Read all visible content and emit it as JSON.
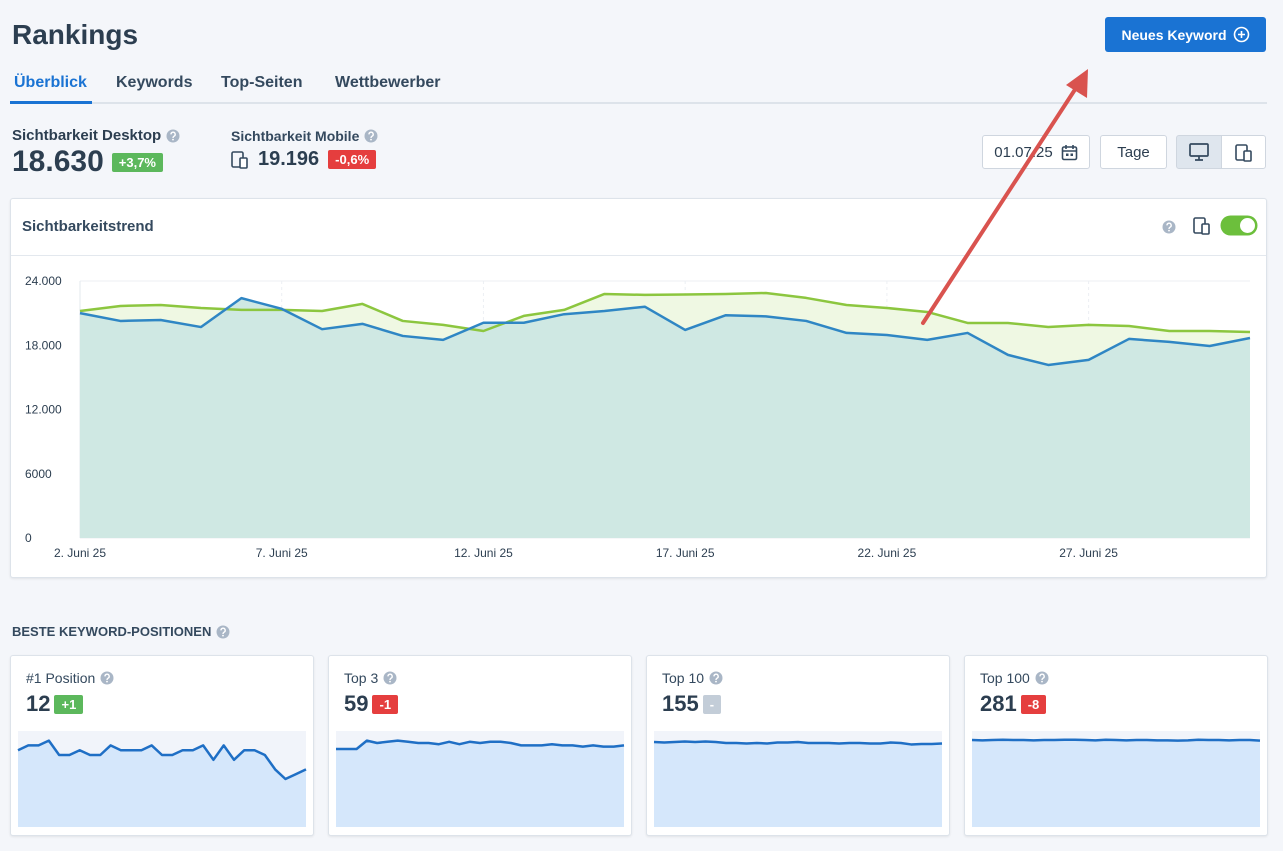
{
  "header": {
    "title": "Rankings",
    "button": "Neues Keyword"
  },
  "tabs": [
    "Überblick",
    "Keywords",
    "Top-Seiten",
    "Wettbewerber"
  ],
  "metrics": [
    {
      "label": "Sichtbarkeit Desktop",
      "value": "18.630",
      "change": "+3,7%"
    },
    {
      "label": "Sichtbarkeit Mobile",
      "value": "19.196",
      "change": "-0,6%"
    }
  ],
  "controls": {
    "date": "01.07.25",
    "unit": "Tage"
  },
  "chart_data": {
    "type": "line",
    "title": "Sichtbarkeitstrend",
    "categories": [
      "2. Juni 25",
      null,
      null,
      null,
      null,
      "7. Juni 25",
      null,
      null,
      null,
      null,
      "12. Juni 25",
      null,
      null,
      null,
      null,
      "17. Juni 25",
      null,
      null,
      null,
      null,
      "22. Juni 25",
      null,
      null,
      null,
      null,
      "27. Juni 25",
      null,
      null,
      null,
      null
    ],
    "series": [
      {
        "color": "#8cc63f",
        "fill": "#eff8e3",
        "values": [
          21200,
          21670,
          21760,
          21480,
          21300,
          21300,
          21200,
          21860,
          20270,
          19900,
          19330,
          20740,
          21300,
          22790,
          22700,
          22740,
          22790,
          22880,
          22420,
          21760,
          21480,
          21110,
          20080,
          20080,
          19700,
          19900,
          19800,
          19330,
          19330,
          19240
        ]
      },
      {
        "color": "#2f86c4",
        "fill": "#cfe8e3",
        "values": [
          21000,
          20270,
          20360,
          19700,
          22400,
          21400,
          19500,
          20000,
          18870,
          18500,
          20100,
          20100,
          20900,
          21200,
          21600,
          19430,
          20800,
          20700,
          20270,
          19150,
          18960,
          18500,
          19150,
          17100,
          16160,
          16630,
          18590,
          18310,
          17930,
          18680
        ]
      }
    ],
    "ylim": [
      0,
      24000
    ],
    "yticks": [
      0,
      6000,
      {
        "value": 12000,
        "label": "12.000"
      },
      {
        "value": 18000,
        "label": "18.000"
      },
      {
        "value": 24000,
        "label": "24.000"
      }
    ],
    "grid": true
  },
  "section_title": "Beste Keyword-Positionen",
  "cards": [
    {
      "label": "#1 Position",
      "value": 12,
      "change": "+1",
      "chart": {
        "type": "area",
        "color": "#1f6fc5",
        "ylim": [
          0,
          20
        ],
        "values": [
          16,
          17,
          17,
          18,
          15,
          15,
          16,
          15,
          15,
          17,
          16,
          16,
          16,
          17,
          15,
          15,
          16,
          16,
          17,
          14,
          17,
          14,
          16,
          16,
          15,
          12,
          10,
          11,
          12
        ]
      }
    },
    {
      "label": "Top 3",
      "value": 59,
      "change": "-1",
      "chart": {
        "type": "area",
        "color": "#1f6fc5",
        "ylim": [
          0,
          80
        ],
        "values": [
          65,
          65,
          65,
          72,
          70,
          71,
          72,
          71,
          70,
          70,
          69,
          71,
          69,
          71,
          70,
          71,
          71,
          70,
          68,
          68,
          68,
          69,
          68,
          68,
          67,
          68,
          67,
          67,
          68
        ]
      }
    },
    {
      "label": "Top 10",
      "value": 155,
      "change": "-",
      "chart": {
        "type": "area",
        "color": "#1f6fc5",
        "ylim": [
          0,
          200
        ],
        "values": [
          177,
          176,
          177,
          178,
          177,
          178,
          177,
          175,
          175,
          174,
          175,
          174,
          176,
          176,
          177,
          175,
          175,
          175,
          174,
          175,
          175,
          174,
          174,
          176,
          175,
          172,
          173,
          173,
          174
        ]
      }
    },
    {
      "label": "Top 100",
      "value": 281,
      "change": "-8",
      "chart": {
        "type": "area",
        "color": "#1f6fc5",
        "ylim": [
          0,
          350
        ],
        "values": [
          317,
          316,
          317,
          318,
          317,
          317,
          316,
          317,
          317,
          318,
          318,
          317,
          316,
          318,
          317,
          316,
          317,
          317,
          316,
          316,
          315,
          316,
          318,
          317,
          317,
          316,
          317,
          317,
          315
        ]
      }
    }
  ]
}
